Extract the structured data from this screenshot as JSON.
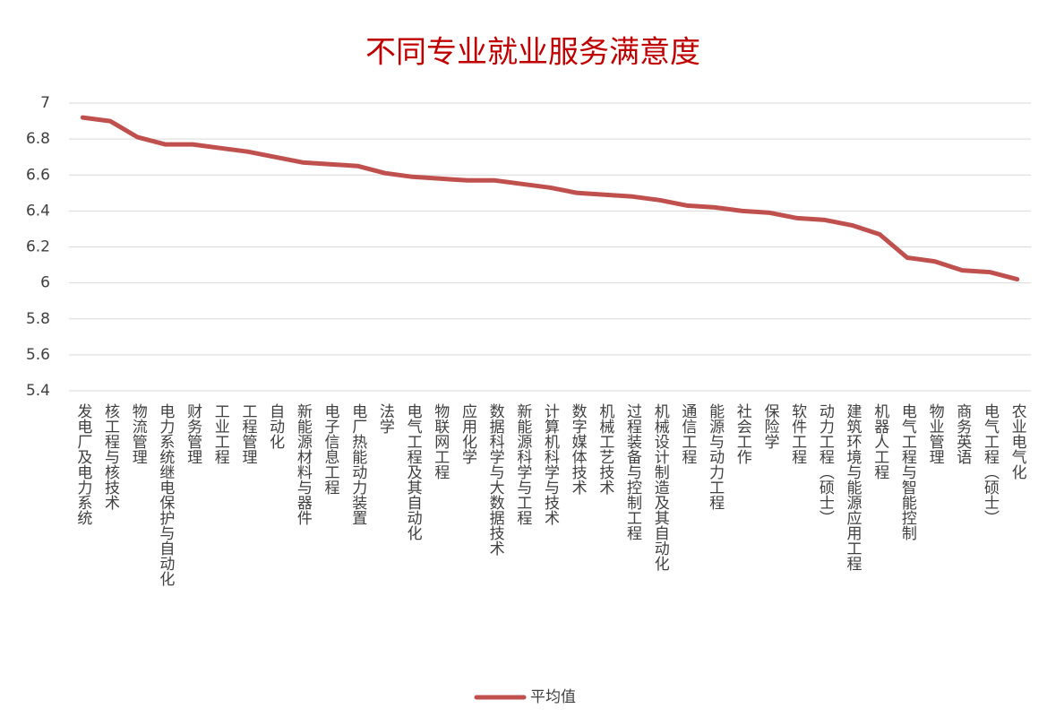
{
  "chart_data": {
    "type": "line",
    "title": "不同专业就业服务满意度",
    "categories": [
      "发电厂及电力系统",
      "核工程与核技术",
      "物流管理",
      "电力系统继电保护与自动化",
      "财务管理",
      "工业工程",
      "工程管理",
      "自动化",
      "新能源材料与器件",
      "电子信息工程",
      "电厂热能动力装置",
      "法学",
      "电气工程及其自动化",
      "物联网工程",
      "应用化学",
      "数据科学与大数据技术",
      "新能源科学与工程",
      "计算机科学与技术",
      "数字媒体技术",
      "机械工艺技术",
      "过程装备与控制工程",
      "机械设计制造及其自动化",
      "通信工程",
      "能源与动力工程",
      "社会工作",
      "保险学",
      "软件工程",
      "动力工程（硕士）",
      "建筑环境与能源应用工程",
      "机器人工程",
      "电气工程与智能控制",
      "物业管理",
      "商务英语",
      "电气工程（硕士）",
      "农业电气化"
    ],
    "series": [
      {
        "name": "平均值",
        "color": "#c0504d",
        "values": [
          6.92,
          6.9,
          6.81,
          6.77,
          6.77,
          6.75,
          6.73,
          6.7,
          6.67,
          6.66,
          6.65,
          6.61,
          6.59,
          6.58,
          6.57,
          6.57,
          6.55,
          6.53,
          6.5,
          6.49,
          6.48,
          6.46,
          6.43,
          6.42,
          6.4,
          6.39,
          6.36,
          6.35,
          6.32,
          6.27,
          6.14,
          6.12,
          6.07,
          6.06,
          6.02
        ]
      }
    ],
    "ylim": [
      5.4,
      7
    ],
    "yticks": [
      5.4,
      5.6,
      5.8,
      6,
      6.2,
      6.4,
      6.6,
      6.8,
      7
    ],
    "grid": true,
    "legend": "bottom"
  }
}
